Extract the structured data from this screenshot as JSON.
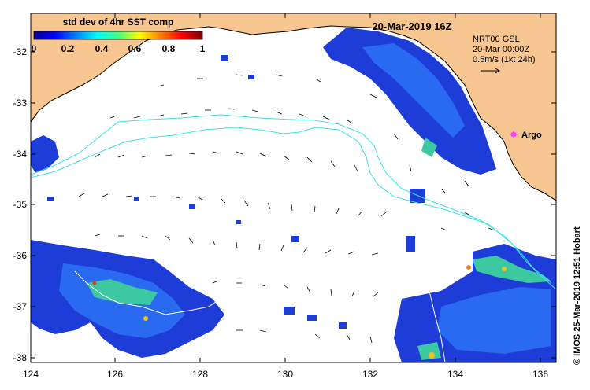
{
  "title": "20-Mar-2019 16Z",
  "colorbar": {
    "title": "std dev of 4hr SST comp",
    "ticks": [
      "0",
      "0.2",
      "0.4",
      "0.6",
      "0.8",
      "1"
    ]
  },
  "legend": {
    "line1": "NRT00 GSL",
    "line2": "20-Mar 00:00Z",
    "line3": "0.5m/s (1kt 24h)"
  },
  "argo_label": "Argo",
  "credit": "©  IMOS 25-Mar-2019 12:51 Hobart",
  "y_ticks": [
    "-32",
    "-33",
    "-34",
    "-35",
    "-36",
    "-37",
    "-38"
  ],
  "x_ticks": [
    "124",
    "126",
    "128",
    "130",
    "132",
    "134",
    "136"
  ],
  "colors": {
    "land": "#f8c690",
    "contour": "#40e0e8",
    "coast": "#000000"
  }
}
